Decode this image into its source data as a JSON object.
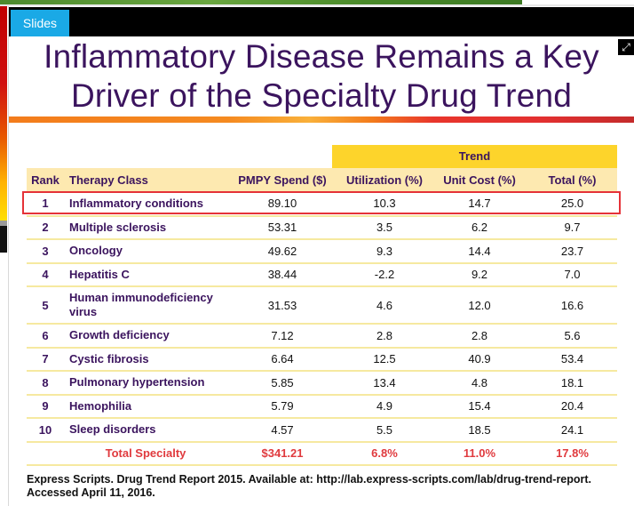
{
  "header": {
    "tab_label": "Slides",
    "expand_icon": "expand-arrows-icon"
  },
  "slide": {
    "title_line1": "Inflammatory Disease Remains a Key",
    "title_line2": "Driver of the Specialty Drug Trend",
    "trend_group_label": "Trend",
    "columns": [
      "Rank",
      "Therapy Class",
      "PMPY Spend ($)",
      "Utilization (%)",
      "Unit Cost (%)",
      "Total (%)"
    ],
    "rows": [
      {
        "rank": "1",
        "therapy_class": "Inflammatory conditions",
        "pmpy_spend": "89.10",
        "utilization": "10.3",
        "unit_cost": "14.7",
        "total": "25.0",
        "highlighted": true
      },
      {
        "rank": "2",
        "therapy_class": "Multiple sclerosis",
        "pmpy_spend": "53.31",
        "utilization": "3.5",
        "unit_cost": "6.2",
        "total": "9.7"
      },
      {
        "rank": "3",
        "therapy_class": "Oncology",
        "pmpy_spend": "49.62",
        "utilization": "9.3",
        "unit_cost": "14.4",
        "total": "23.7"
      },
      {
        "rank": "4",
        "therapy_class": "Hepatitis C",
        "pmpy_spend": "38.44",
        "utilization": "-2.2",
        "unit_cost": "9.2",
        "total": "7.0"
      },
      {
        "rank": "5",
        "therapy_class": "Human immunodeficiency virus",
        "pmpy_spend": "31.53",
        "utilization": "4.6",
        "unit_cost": "12.0",
        "total": "16.6"
      },
      {
        "rank": "6",
        "therapy_class": "Growth deficiency",
        "pmpy_spend": "7.12",
        "utilization": "2.8",
        "unit_cost": "2.8",
        "total": "5.6"
      },
      {
        "rank": "7",
        "therapy_class": "Cystic fibrosis",
        "pmpy_spend": "6.64",
        "utilization": "12.5",
        "unit_cost": "40.9",
        "total": "53.4"
      },
      {
        "rank": "8",
        "therapy_class": "Pulmonary hypertension",
        "pmpy_spend": "5.85",
        "utilization": "13.4",
        "unit_cost": "4.8",
        "total": "18.1"
      },
      {
        "rank": "9",
        "therapy_class": "Hemophilia",
        "pmpy_spend": "5.79",
        "utilization": "4.9",
        "unit_cost": "15.4",
        "total": "20.4"
      },
      {
        "rank": "10",
        "therapy_class": "Sleep disorders",
        "pmpy_spend": "4.57",
        "utilization": "5.5",
        "unit_cost": "18.5",
        "total": "24.1"
      }
    ],
    "total_row": {
      "label": "Total Specialty",
      "pmpy_spend": "$341.21",
      "utilization": "6.8%",
      "unit_cost": "11.0%",
      "total": "17.8%"
    },
    "source": "Express Scripts. Drug Trend Report 2015. Available at: http://lab.express-scripts.com/lab/drug-trend-report. Accessed April 11, 2016."
  },
  "colors": {
    "title": "#3b145e",
    "tab": "#1aa9e6",
    "trend_header": "#fdd42b",
    "header_row": "#fde9b0",
    "highlight_border": "#e53238",
    "total_text": "#e03a3e"
  }
}
